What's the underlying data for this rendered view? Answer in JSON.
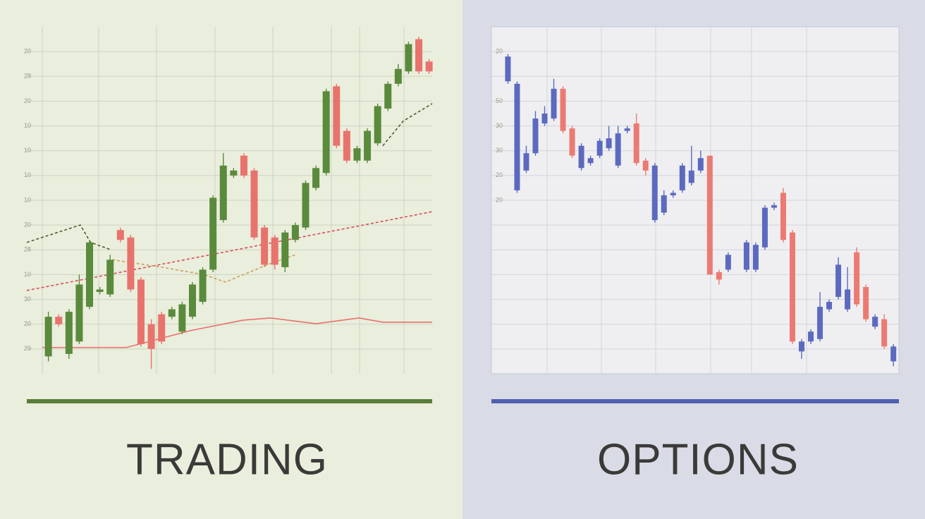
{
  "chart_data": [
    {
      "type": "candlestick",
      "label": "TRADING",
      "accent": "#5a7d3a",
      "up_color": "#5a8a3c",
      "down_color": "#e8736d",
      "grid": true,
      "xlim": [
        -2.1,
        37.3
      ],
      "ylim": [
        -1,
        13
      ],
      "yticks": [
        {
          "value": 12,
          "label": "20"
        },
        {
          "value": 11,
          "label": "28"
        },
        {
          "value": 10,
          "label": "20"
        },
        {
          "value": 9,
          "label": "10"
        },
        {
          "value": 8,
          "label": "10"
        },
        {
          "value": 7,
          "label": "10"
        },
        {
          "value": 6,
          "label": "10"
        },
        {
          "value": 5,
          "label": "20"
        },
        {
          "value": 4,
          "label": "28"
        },
        {
          "value": 3,
          "label": "10"
        },
        {
          "value": 2,
          "label": "30"
        },
        {
          "value": 1,
          "label": "20"
        },
        {
          "value": 0,
          "label": "29"
        }
      ],
      "x": [
        0,
        1,
        2,
        3,
        4,
        5,
        6,
        7,
        8,
        9,
        10,
        11,
        12,
        13,
        14,
        15,
        16,
        17,
        18,
        19,
        20,
        21,
        22,
        23,
        24,
        25,
        26,
        27,
        28,
        29,
        30,
        31,
        32,
        33,
        34,
        35,
        36,
        37
      ],
      "open": [
        -0.3,
        1.3,
        -0.2,
        0.3,
        1.7,
        2.3,
        2.2,
        4.8,
        4.5,
        2.8,
        1.0,
        1.4,
        1.3,
        0.7,
        1.3,
        1.9,
        3.2,
        5.2,
        7.0,
        7.8,
        7.2,
        4.9,
        4.5,
        3.3,
        4.4,
        4.9,
        6.5,
        7.1,
        10.6,
        8.8,
        7.6,
        7.6,
        8.3,
        9.7,
        10.7,
        11.2,
        12.5,
        11.6
      ],
      "high": [
        1.5,
        1.4,
        1.6,
        3.0,
        4.4,
        2.5,
        3.8,
        4.9,
        4.6,
        2.9,
        1.2,
        1.5,
        1.7,
        1.9,
        2.7,
        3.3,
        6.2,
        7.9,
        7.3,
        7.9,
        7.3,
        5.0,
        4.6,
        4.8,
        5.1,
        6.8,
        7.4,
        10.5,
        10.7,
        8.9,
        8.2,
        8.9,
        9.9,
        10.8,
        11.5,
        12.4,
        12.6,
        11.7
      ],
      "low": [
        -0.5,
        0.9,
        -0.4,
        0.2,
        1.6,
        2.2,
        2.1,
        4.3,
        2.3,
        0.1,
        -0.8,
        0.2,
        1.2,
        0.6,
        1.2,
        1.8,
        3.1,
        5.1,
        6.9,
        6.9,
        4.4,
        3.3,
        3.2,
        3.1,
        4.3,
        4.8,
        6.4,
        7.0,
        8.1,
        7.5,
        7.5,
        7.5,
        8.2,
        9.6,
        10.6,
        11.1,
        11.1,
        11.1
      ],
      "close": [
        1.3,
        1.0,
        1.5,
        2.6,
        4.3,
        2.4,
        3.6,
        4.4,
        2.4,
        0.2,
        0.0,
        0.3,
        1.6,
        1.8,
        2.6,
        3.2,
        6.1,
        7.4,
        7.2,
        7.0,
        4.5,
        3.4,
        3.4,
        4.7,
        5.0,
        6.7,
        7.3,
        10.4,
        8.2,
        7.6,
        8.1,
        8.8,
        9.8,
        10.7,
        11.3,
        12.3,
        11.2,
        11.2
      ],
      "overlays": [
        {
          "color": "#e87070",
          "dash": false,
          "x": [
            -0.6,
            7.6,
            13.8,
            18.9,
            21.6,
            26.0,
            30.2,
            32.5,
            37.3
          ],
          "values": [
            0.06,
            0.06,
            0.74,
            1.16,
            1.25,
            1.02,
            1.25,
            1.08,
            1.08
          ]
        },
        {
          "color": "#d94b5a",
          "dash": true,
          "x": [
            -2.1,
            37.3
          ],
          "values": [
            2.36,
            5.54
          ]
        },
        {
          "color": "#4a5e30",
          "dash": true,
          "x": [
            -2.1,
            3.1,
            4.1,
            6.1
          ],
          "values": [
            4.3,
            5.0,
            4.3,
            4.0
          ]
        },
        {
          "color": "#4a5e30",
          "dash": true,
          "x": [
            32.5,
            34.5,
            37.3
          ],
          "values": [
            8.2,
            9.2,
            9.9
          ]
        },
        {
          "color": "#c8a060",
          "dash": true,
          "x": [
            6.2,
            11.0,
            15.1,
            17.2,
            21.3,
            24.0
          ],
          "values": [
            3.6,
            3.3,
            3.0,
            2.7,
            3.4,
            3.8
          ]
        }
      ]
    },
    {
      "type": "candlestick",
      "label": "OPTIONS",
      "accent": "#5060b0",
      "up_color": "#5b6abf",
      "down_color": "#ec7a72",
      "grid": true,
      "xlim": [
        -1.8,
        42.6
      ],
      "ylim": [
        -1,
        13
      ],
      "yticks": [
        {
          "value": 12,
          "label": "20"
        },
        {
          "value": 11,
          "label": null
        },
        {
          "value": 10,
          "label": "50"
        },
        {
          "value": 9,
          "label": "30"
        },
        {
          "value": 8,
          "label": "30"
        },
        {
          "value": 7,
          "label": "20"
        },
        {
          "value": 6,
          "label": "20"
        },
        {
          "value": 5,
          "label": null
        },
        {
          "value": 4,
          "label": null
        },
        {
          "value": 3,
          "label": null
        },
        {
          "value": 2,
          "label": null
        },
        {
          "value": 1,
          "label": null
        },
        {
          "value": 0,
          "label": null
        }
      ],
      "x": [
        0,
        1,
        2,
        3,
        4,
        5,
        6,
        7,
        8,
        9,
        10,
        11,
        12,
        13,
        14,
        15,
        16,
        17,
        18,
        19,
        20,
        21,
        22,
        23,
        24,
        26,
        27,
        28,
        29,
        30,
        31,
        32,
        33,
        34,
        35,
        36,
        37,
        38,
        39,
        40,
        41,
        42
      ],
      "open": [
        10.8,
        6.4,
        7.2,
        7.9,
        9.1,
        9.3,
        10.5,
        8.9,
        7.3,
        7.5,
        7.8,
        8.1,
        7.4,
        8.8,
        9.1,
        7.6,
        5.2,
        5.5,
        6.2,
        6.4,
        6.7,
        7.2,
        7.8,
        3.1,
        3.2,
        3.2,
        3.2,
        4.1,
        5.7,
        6.3,
        4.7,
        -0.1,
        0.3,
        0.4,
        1.6,
        2.1,
        1.6,
        3.9,
        2.5,
        0.9,
        1.2,
        -0.5
      ],
      "high": [
        11.9,
        10.8,
        8.2,
        9.6,
        9.8,
        10.9,
        10.6,
        9.0,
        8.3,
        7.8,
        8.5,
        9.0,
        9.0,
        9.0,
        9.5,
        7.7,
        7.5,
        6.4,
        6.4,
        7.5,
        8.2,
        8.0,
        7.8,
        3.2,
        3.9,
        4.4,
        4.3,
        5.8,
        5.9,
        6.5,
        4.8,
        0.4,
        0.8,
        2.3,
        2.0,
        3.7,
        3.3,
        4.1,
        2.6,
        1.4,
        1.4,
        0.2
      ],
      "low": [
        10.7,
        6.3,
        7.1,
        7.8,
        9.0,
        9.2,
        8.7,
        7.7,
        7.2,
        7.4,
        7.7,
        8.0,
        7.3,
        8.7,
        7.4,
        7.0,
        5.1,
        5.4,
        6.1,
        6.3,
        6.6,
        7.1,
        3.0,
        2.6,
        3.1,
        3.1,
        3.1,
        4.0,
        5.6,
        4.3,
        0.2,
        -0.4,
        0.2,
        0.3,
        1.5,
        2.0,
        1.5,
        1.7,
        1.1,
        0.8,
        0.0,
        -0.7
      ],
      "close": [
        11.8,
        10.7,
        7.9,
        9.3,
        9.5,
        10.5,
        8.8,
        7.8,
        8.2,
        7.7,
        8.4,
        8.5,
        8.7,
        8.9,
        7.5,
        7.2,
        7.4,
        6.2,
        6.3,
        7.4,
        7.2,
        7.7,
        3.0,
        2.8,
        3.8,
        4.3,
        4.2,
        5.7,
        5.8,
        4.4,
        0.3,
        0.3,
        0.7,
        1.7,
        1.9,
        3.4,
        2.4,
        1.8,
        1.2,
        1.3,
        0.1,
        0.1
      ]
    }
  ]
}
